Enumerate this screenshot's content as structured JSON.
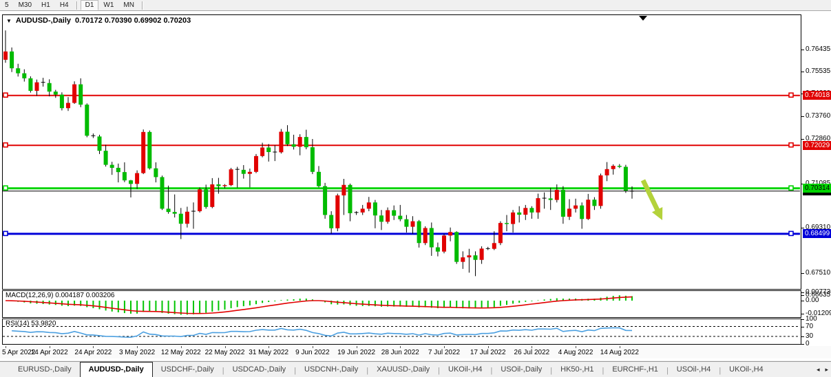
{
  "toolbar": {
    "items": [
      {
        "label": "5"
      },
      {
        "label": "M30"
      },
      {
        "label": "H1"
      },
      {
        "label": "H4"
      },
      {
        "sep": true
      },
      {
        "label": "D1",
        "active": true
      },
      {
        "label": "W1"
      },
      {
        "label": "MN"
      },
      {
        "sep": true
      }
    ]
  },
  "header": {
    "dropdown_icon": "▼",
    "title": "AUDUSD-,Daily",
    "ohlc_text": "0.70172 0.70390 0.69902 0.70203"
  },
  "chart_data": {
    "type": "candlestick",
    "symbol": "AUDUSD-",
    "timeframe": "Daily",
    "title": "AUDUSD-,Daily",
    "ylim": [
      0.663,
      0.77
    ],
    "colors": {
      "bull": "#e10000",
      "bear": "#00bb00",
      "wick": "#000000",
      "level_red": "#e10000",
      "level_green": "#00d300",
      "level_blue": "#0000d9",
      "macd_histogram": "#00c400",
      "macd_signal": "#e10000",
      "rsi_line": "#4a9fe0",
      "arrow": "#b4d23b"
    },
    "ohlc": [
      [
        0.7544,
        0.7661,
        0.7532,
        0.7577
      ],
      [
        0.7577,
        0.7593,
        0.7495,
        0.751
      ],
      [
        0.751,
        0.7528,
        0.7477,
        0.749
      ],
      [
        0.749,
        0.7506,
        0.7457,
        0.747
      ],
      [
        0.747,
        0.7478,
        0.7413,
        0.742
      ],
      [
        0.742,
        0.7465,
        0.74,
        0.7454
      ],
      [
        0.7454,
        0.7472,
        0.7437,
        0.7451
      ],
      [
        0.7451,
        0.7466,
        0.7398,
        0.7417
      ],
      [
        0.7417,
        0.7424,
        0.7392,
        0.7405
      ],
      [
        0.7405,
        0.7414,
        0.7342,
        0.7351
      ],
      [
        0.7351,
        0.7395,
        0.734,
        0.7372
      ],
      [
        0.7372,
        0.7458,
        0.7368,
        0.7446
      ],
      [
        0.7446,
        0.747,
        0.7355,
        0.7365
      ],
      [
        0.7365,
        0.737,
        0.7235,
        0.7241
      ],
      [
        0.7241,
        0.725,
        0.7232,
        0.7238
      ],
      [
        0.7238,
        0.7245,
        0.7168,
        0.7181
      ],
      [
        0.7181,
        0.7205,
        0.7118,
        0.7125
      ],
      [
        0.7125,
        0.7137,
        0.7085,
        0.7113
      ],
      [
        0.7113,
        0.713,
        0.7055,
        0.7096
      ],
      [
        0.7096,
        0.7135,
        0.7056,
        0.7063
      ],
      [
        0.7063,
        0.7065,
        0.6995,
        0.7049
      ],
      [
        0.7049,
        0.7103,
        0.7029,
        0.7092
      ],
      [
        0.7092,
        0.7266,
        0.7088,
        0.7256
      ],
      [
        0.7256,
        0.7262,
        0.7106,
        0.7111
      ],
      [
        0.7111,
        0.7135,
        0.7055,
        0.7076
      ],
      [
        0.7076,
        0.7082,
        0.6945,
        0.695
      ],
      [
        0.695,
        0.7042,
        0.693,
        0.6937
      ],
      [
        0.6937,
        0.7007,
        0.6915,
        0.693
      ],
      [
        0.693,
        0.6953,
        0.6829,
        0.689
      ],
      [
        0.689,
        0.6958,
        0.6875,
        0.6938
      ],
      [
        0.6938,
        0.6975,
        0.687,
        0.694
      ],
      [
        0.694,
        0.7035,
        0.6935,
        0.7027
      ],
      [
        0.7027,
        0.7046,
        0.695,
        0.6957
      ],
      [
        0.6957,
        0.7072,
        0.6952,
        0.7047
      ],
      [
        0.7047,
        0.7073,
        0.701,
        0.704
      ],
      [
        0.704,
        0.7048,
        0.7032,
        0.7044
      ],
      [
        0.7044,
        0.7113,
        0.704,
        0.7107
      ],
      [
        0.7107,
        0.7117,
        0.7034,
        0.7105
      ],
      [
        0.7105,
        0.7124,
        0.707,
        0.7089
      ],
      [
        0.7089,
        0.711,
        0.7035,
        0.7097
      ],
      [
        0.7097,
        0.7168,
        0.7092,
        0.716
      ],
      [
        0.716,
        0.7213,
        0.7155,
        0.7194
      ],
      [
        0.7194,
        0.7208,
        0.7138,
        0.7176
      ],
      [
        0.7176,
        0.7203,
        0.714,
        0.7175
      ],
      [
        0.7175,
        0.7268,
        0.717,
        0.7257
      ],
      [
        0.7257,
        0.7283,
        0.72,
        0.7207
      ],
      [
        0.7207,
        0.7245,
        0.7186,
        0.7197
      ],
      [
        0.7197,
        0.7247,
        0.7163,
        0.7236
      ],
      [
        0.7236,
        0.7265,
        0.7187,
        0.7195
      ],
      [
        0.7195,
        0.7228,
        0.7088,
        0.7097
      ],
      [
        0.7097,
        0.712,
        0.7035,
        0.704
      ],
      [
        0.704,
        0.7053,
        0.691,
        0.6925
      ],
      [
        0.6925,
        0.694,
        0.685,
        0.6872
      ],
      [
        0.6872,
        0.701,
        0.686,
        0.7003
      ],
      [
        0.7003,
        0.7069,
        0.6925,
        0.7045
      ],
      [
        0.7045,
        0.705,
        0.69,
        0.6932
      ],
      [
        0.6932,
        0.694,
        0.6925,
        0.6935
      ],
      [
        0.6935,
        0.6965,
        0.6925,
        0.695
      ],
      [
        0.695,
        0.6997,
        0.694,
        0.6975
      ],
      [
        0.6975,
        0.6985,
        0.6872,
        0.6923
      ],
      [
        0.6923,
        0.6945,
        0.6865,
        0.6898
      ],
      [
        0.6898,
        0.6955,
        0.689,
        0.6944
      ],
      [
        0.6944,
        0.6963,
        0.6905,
        0.6922
      ],
      [
        0.6922,
        0.6965,
        0.69,
        0.6908
      ],
      [
        0.6908,
        0.6925,
        0.6855,
        0.6878
      ],
      [
        0.6878,
        0.692,
        0.685,
        0.69
      ],
      [
        0.69,
        0.6905,
        0.6795,
        0.6813
      ],
      [
        0.6813,
        0.688,
        0.6805,
        0.6873
      ],
      [
        0.6873,
        0.6895,
        0.6762,
        0.6796
      ],
      [
        0.6796,
        0.6815,
        0.676,
        0.6779
      ],
      [
        0.6779,
        0.685,
        0.6772,
        0.6843
      ],
      [
        0.6843,
        0.6875,
        0.682,
        0.6857
      ],
      [
        0.6857,
        0.686,
        0.673,
        0.6738
      ],
      [
        0.6738,
        0.678,
        0.671,
        0.6756
      ],
      [
        0.6756,
        0.679,
        0.6695,
        0.6764
      ],
      [
        0.6764,
        0.678,
        0.6681,
        0.6746
      ],
      [
        0.6746,
        0.68,
        0.673,
        0.6791
      ],
      [
        0.6791,
        0.6798,
        0.6785,
        0.679
      ],
      [
        0.679,
        0.686,
        0.6785,
        0.6813
      ],
      [
        0.6813,
        0.69,
        0.6805,
        0.6893
      ],
      [
        0.6893,
        0.6925,
        0.686,
        0.6889
      ],
      [
        0.6889,
        0.6945,
        0.6855,
        0.6935
      ],
      [
        0.6935,
        0.696,
        0.6895,
        0.6926
      ],
      [
        0.6926,
        0.6965,
        0.6905,
        0.6953
      ],
      [
        0.6953,
        0.696,
        0.691,
        0.6935
      ],
      [
        0.6935,
        0.701,
        0.691,
        0.6992
      ],
      [
        0.6992,
        0.7015,
        0.695,
        0.6991
      ],
      [
        0.6991,
        0.7033,
        0.6945,
        0.6985
      ],
      [
        0.6985,
        0.7047,
        0.6975,
        0.7025
      ],
      [
        0.7025,
        0.704,
        0.689,
        0.6918
      ],
      [
        0.6918,
        0.6988,
        0.6905,
        0.695
      ],
      [
        0.695,
        0.699,
        0.6935,
        0.6963
      ],
      [
        0.6963,
        0.6975,
        0.687,
        0.6909
      ],
      [
        0.6909,
        0.7009,
        0.6905,
        0.6986
      ],
      [
        0.6986,
        0.6996,
        0.6945,
        0.6961
      ],
      [
        0.6961,
        0.709,
        0.695,
        0.7083
      ],
      [
        0.7083,
        0.7136,
        0.706,
        0.7108
      ],
      [
        0.7108,
        0.7127,
        0.7086,
        0.7121
      ],
      [
        0.7121,
        0.7128,
        0.7112,
        0.7117
      ],
      [
        0.7117,
        0.7125,
        0.7013,
        0.7022
      ],
      [
        0.70172,
        0.7039,
        0.69902,
        0.70203
      ]
    ],
    "current_bar": {
      "open": "0.70172",
      "high": "0.70390",
      "low": "0.69902",
      "close": "0.70203"
    },
    "levels": [
      {
        "value": 0.74018,
        "label": "0.74018",
        "color": "#e10000",
        "width": 2,
        "badge_text": "#fff"
      },
      {
        "value": 0.72029,
        "label": "0.72029",
        "color": "#e10000",
        "width": 2,
        "badge_text": "#fff"
      },
      {
        "value": 0.70314,
        "label": "0.70314",
        "color": "#00d300",
        "width": 3,
        "badge_text": "#000"
      },
      {
        "value": 0.68499,
        "label": "0.68499",
        "color": "#0000d9",
        "width": 3,
        "badge_text": "#fff"
      }
    ],
    "price_line": {
      "value": 0.70203,
      "label": "0.70203",
      "color": "#000000"
    },
    "y_ticks": [
      {
        "text": "0.76435",
        "value": 0.76435
      },
      {
        "text": "0.75535",
        "value": 0.75535
      },
      {
        "text": "0.74660",
        "value": 0.7466
      },
      {
        "text": "0.73760",
        "value": 0.7376
      },
      {
        "text": "0.72860",
        "value": 0.7286
      },
      {
        "text": "0.71085",
        "value": 0.71085
      },
      {
        "text": "0.69310",
        "value": 0.6931
      },
      {
        "text": "0.67510",
        "value": 0.6751
      },
      {
        "text": "0.66635",
        "value": 0.66635
      }
    ],
    "x_labels": [
      {
        "text": "5 Apr 2022",
        "index": 0
      },
      {
        "text": "14 Apr 2022",
        "index": 7
      },
      {
        "text": "24 Apr 2022",
        "index": 14
      },
      {
        "text": "3 May 2022",
        "index": 21
      },
      {
        "text": "12 May 2022",
        "index": 28
      },
      {
        "text": "22 May 2022",
        "index": 35
      },
      {
        "text": "31 May 2022",
        "index": 42
      },
      {
        "text": "9 Jun 2022",
        "index": 49
      },
      {
        "text": "19 Jun 2022",
        "index": 56
      },
      {
        "text": "28 Jun 2022",
        "index": 63
      },
      {
        "text": "7 Jul 2022",
        "index": 70
      },
      {
        "text": "17 Jul 2022",
        "index": 77
      },
      {
        "text": "26 Jul 2022",
        "index": 84
      },
      {
        "text": "4 Aug 2022",
        "index": 91
      },
      {
        "text": "14 Aug 2022",
        "index": 98
      }
    ],
    "indicators": {
      "macd": {
        "label": "MACD(12,26,9) 0.004187 0.003206",
        "params": [
          12,
          26,
          9
        ],
        "value": "0.004187",
        "signal_value": "0.003206",
        "axis_ticks": [
          {
            "text": "0.007736",
            "value": 0.00774
          },
          {
            "text": "0.00",
            "value": 0
          },
          {
            "text": "-0.01209",
            "value": -0.0121
          }
        ]
      },
      "rsi": {
        "label": "RSI(14) 53.9820",
        "period": 14,
        "value": "53.9820",
        "levels": [
          70,
          30
        ],
        "axis_ticks": [
          {
            "text": "100",
            "value": 100
          },
          {
            "text": "70",
            "value": 70
          },
          {
            "text": "30",
            "value": 30
          },
          {
            "text": "0",
            "value": 0
          }
        ]
      }
    },
    "annotations": [
      {
        "type": "arrow-down-right",
        "color": "#b4d23b",
        "from": [
          931,
          241
        ],
        "to": [
          959,
          299
        ]
      }
    ]
  },
  "tabs": {
    "items": [
      {
        "label": "EURUSD-,Daily"
      },
      {
        "label": "AUDUSD-,Daily",
        "active": true
      },
      {
        "label": "USDCHF-,Daily"
      },
      {
        "label": "USDCAD-,Daily"
      },
      {
        "label": "USDCNH-,Daily"
      },
      {
        "label": "XAUUSD-,Daily"
      },
      {
        "label": "UKOil-,H4"
      },
      {
        "label": "USOil-,Daily"
      },
      {
        "label": "HK50-,H1"
      },
      {
        "label": "EURCHF-,H1"
      },
      {
        "label": "USOil-,H4"
      },
      {
        "label": "UKOil-,H4"
      }
    ],
    "scroll_left": "◂",
    "scroll_right": "▸"
  }
}
